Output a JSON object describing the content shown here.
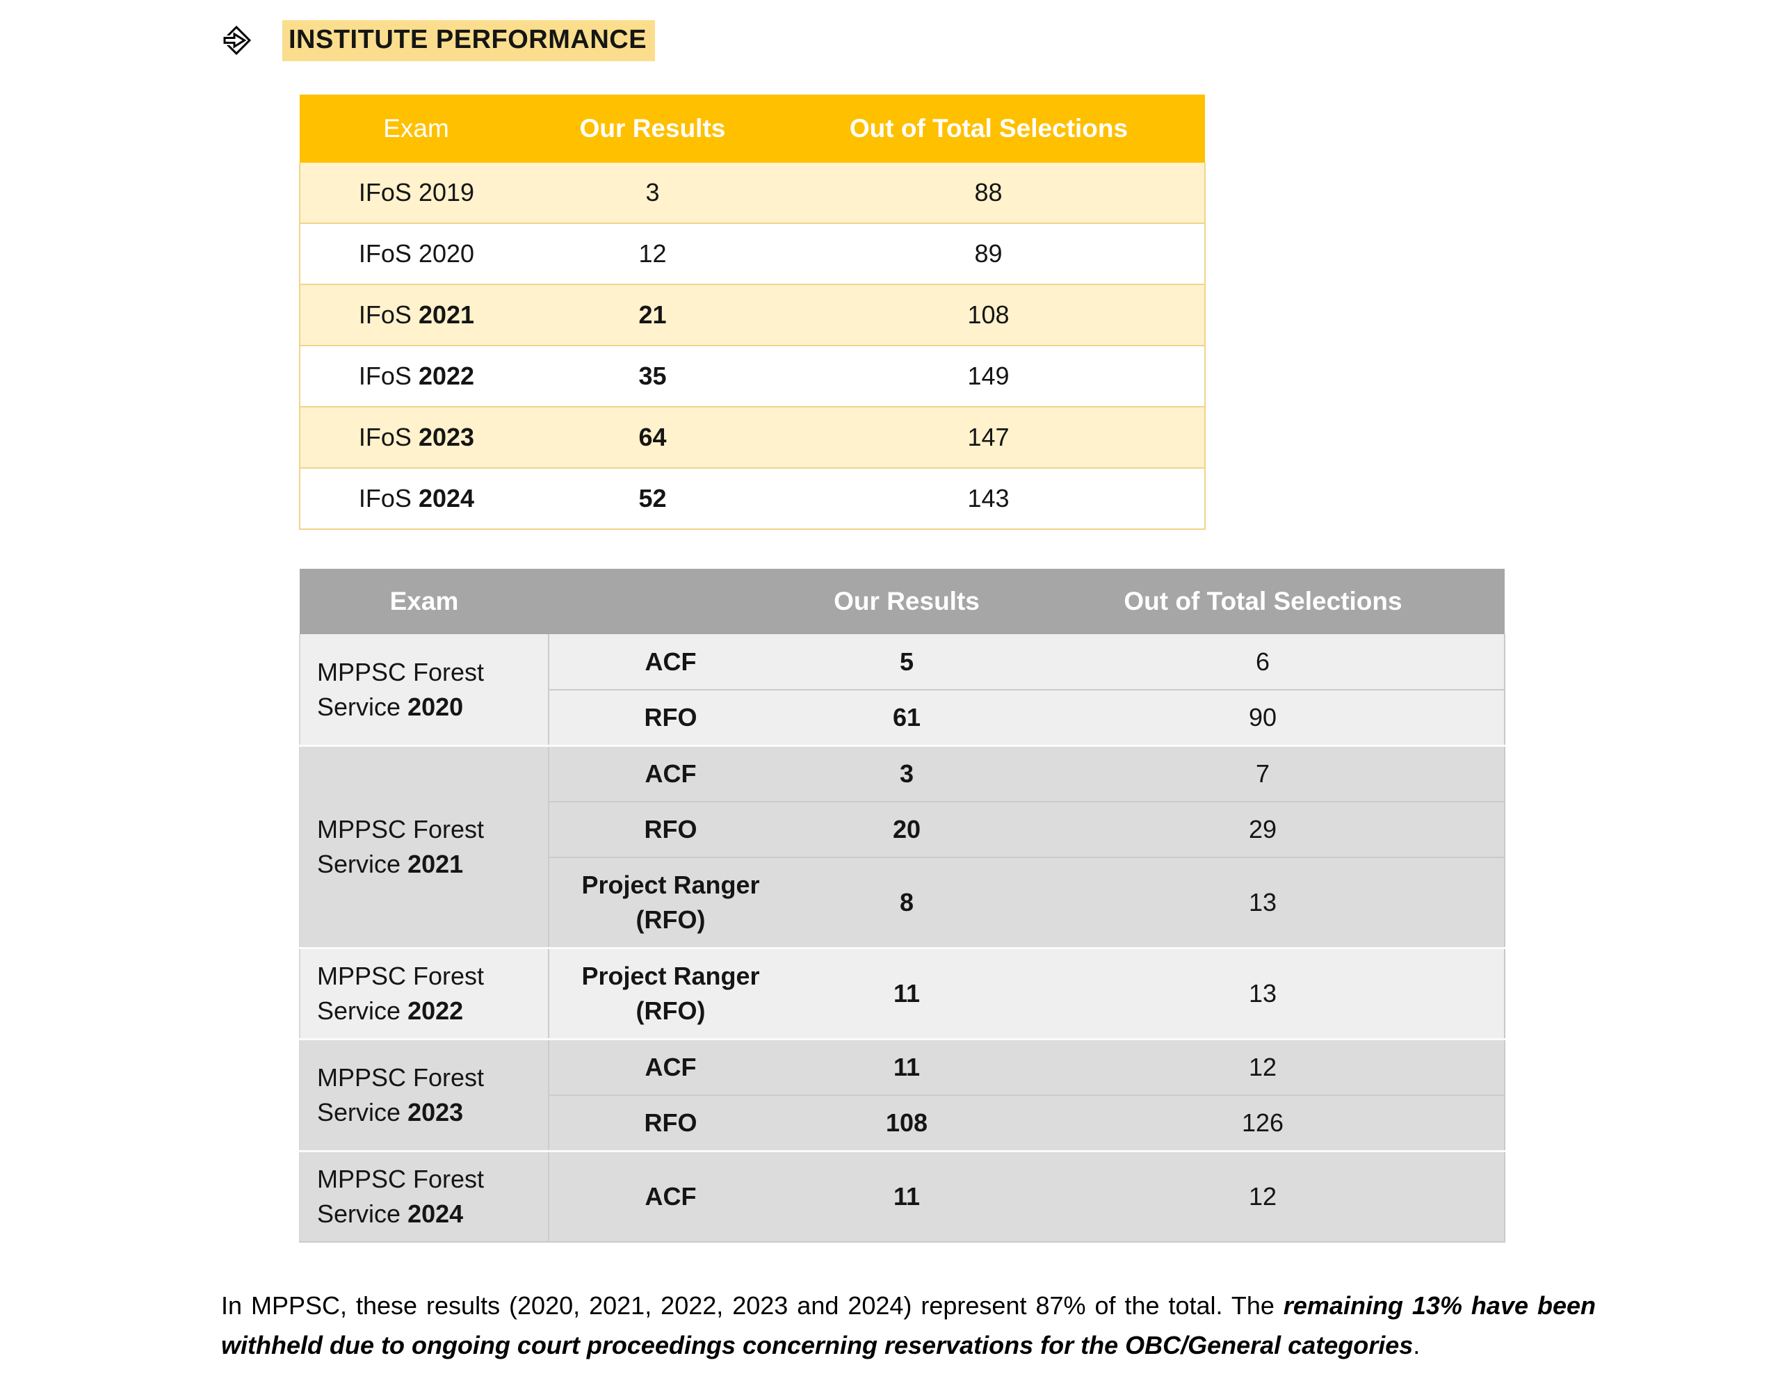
{
  "heading": {
    "icon": "diamond-arrow-bullet",
    "text": "INSTITUTE PERFORMANCE",
    "highlight_color": "#FBDE8D"
  },
  "ifos_table": {
    "columns": [
      "Exam",
      "Our Results",
      "Out of Total Selections"
    ],
    "header_bg": "#FFC000",
    "band_bg": "#FFF2CC",
    "border_color": "#F0D48A",
    "rows": [
      {
        "exam_prefix": "IFoS",
        "year": "2019",
        "year_bold": false,
        "our_results": "3",
        "results_bold": false,
        "total": "88",
        "banded": true
      },
      {
        "exam_prefix": "IFoS",
        "year": "2020",
        "year_bold": false,
        "our_results": "12",
        "results_bold": false,
        "total": "89",
        "banded": false
      },
      {
        "exam_prefix": "IFoS",
        "year": "2021",
        "year_bold": true,
        "our_results": "21",
        "results_bold": true,
        "total": "108",
        "banded": true
      },
      {
        "exam_prefix": "IFoS",
        "year": "2022",
        "year_bold": true,
        "our_results": "35",
        "results_bold": true,
        "total": "149",
        "banded": false
      },
      {
        "exam_prefix": "IFoS",
        "year": "2023",
        "year_bold": true,
        "our_results": "64",
        "results_bold": true,
        "total": "147",
        "banded": true
      },
      {
        "exam_prefix": "IFoS",
        "year": "2024",
        "year_bold": true,
        "our_results": "52",
        "results_bold": true,
        "total": "143",
        "banded": false
      }
    ]
  },
  "mppsc_table": {
    "columns": [
      "Exam",
      "",
      "Our Results",
      "Out of Total Selections"
    ],
    "header_bg": "#A6A6A6",
    "band_light": "#EFEFEF",
    "band_dark": "#DCDCDC",
    "groups": [
      {
        "label_prefix": "MPPSC Forest Service",
        "year": "2020",
        "shade": "light",
        "rows": [
          {
            "sub": "ACF",
            "our": "5",
            "total": "6"
          },
          {
            "sub": "RFO",
            "our": "61",
            "total": "90"
          }
        ]
      },
      {
        "label_prefix": "MPPSC Forest Service",
        "year": "2021",
        "shade": "dark",
        "rows": [
          {
            "sub": "ACF",
            "our": "3",
            "total": "7"
          },
          {
            "sub": "RFO",
            "our": "20",
            "total": "29"
          },
          {
            "sub": "Project Ranger (RFO)",
            "our": "8",
            "total": "13"
          }
        ]
      },
      {
        "label_prefix": "MPPSC Forest Service",
        "year": "2022",
        "shade": "light",
        "rows": [
          {
            "sub": "Project Ranger (RFO)",
            "our": "11",
            "total": "13"
          }
        ]
      },
      {
        "label_prefix": "MPPSC Forest Service",
        "year": "2023",
        "shade": "dark",
        "rows": [
          {
            "sub": "ACF",
            "our": "11",
            "total": "12"
          },
          {
            "sub": "RFO",
            "our": "108",
            "total": "126"
          }
        ]
      },
      {
        "label_prefix": "MPPSC Forest Service",
        "year": "2024",
        "shade": "dark",
        "rows": [
          {
            "sub": "ACF",
            "our": "11",
            "total": "12"
          }
        ]
      }
    ]
  },
  "footnote": {
    "normal_1": "In MPPSC, these results (2020, 2021, 2022, 2023 and 2024) represent 87% of the total. The ",
    "bold_italic": "remaining 13% have been withheld due to ongoing court proceedings concerning reservations for the OBC/General categories",
    "normal_2": "."
  }
}
